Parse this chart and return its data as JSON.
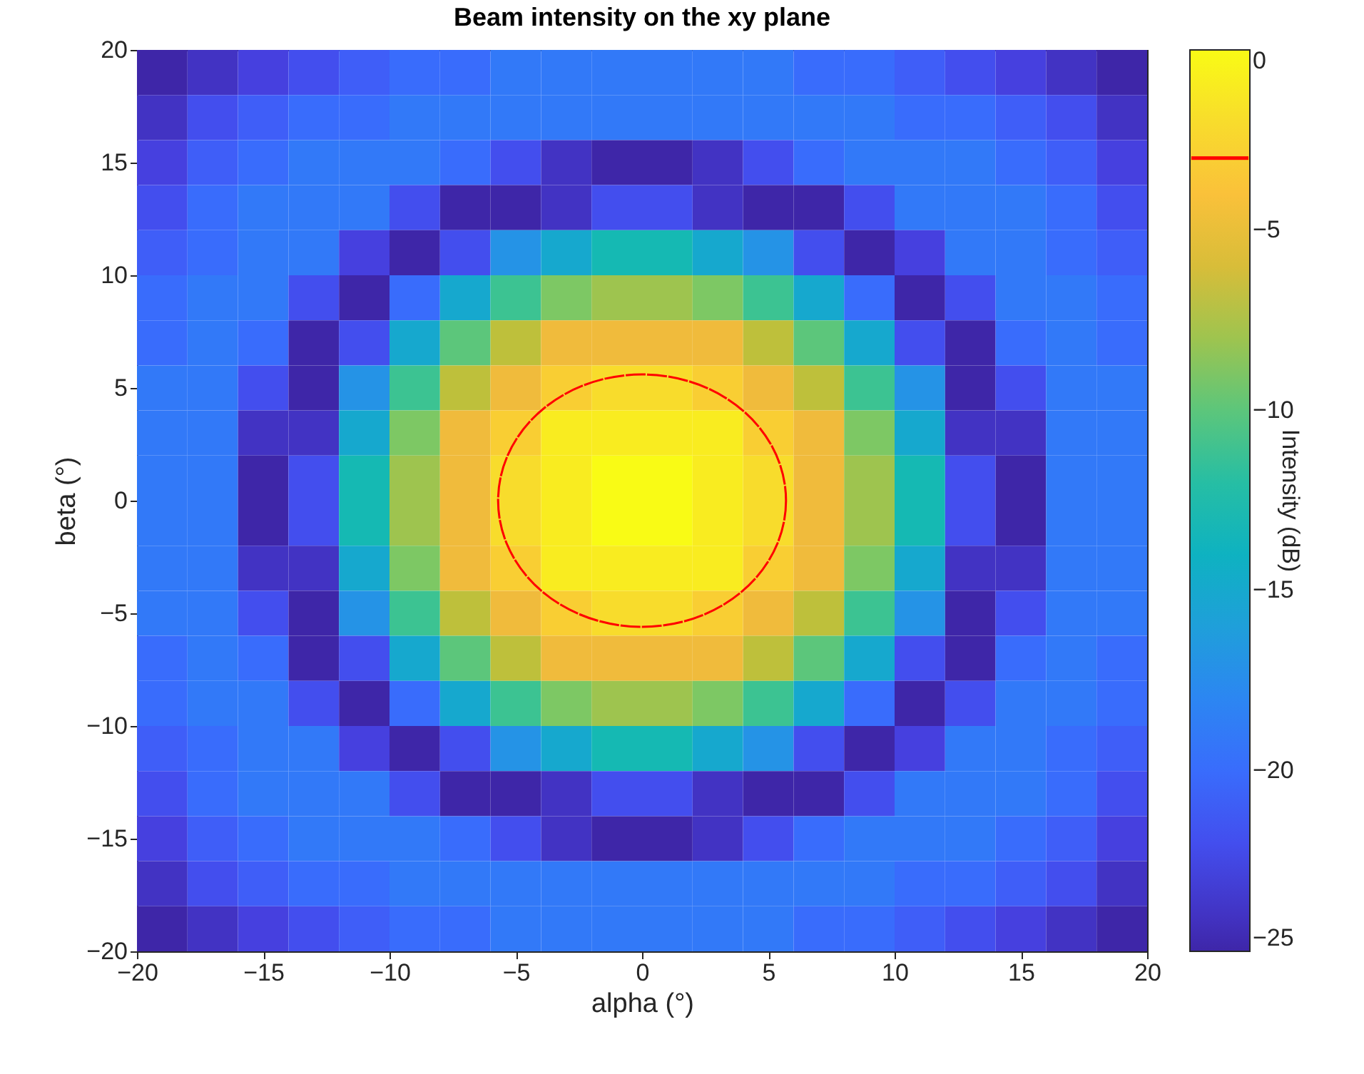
{
  "chart_data": {
    "type": "heatmap",
    "title": "Beam intensity on the xy plane",
    "xlabel": "alpha (°)",
    "ylabel": "beta (°)",
    "clabel": "Intensity (dB)",
    "x": [
      -19,
      -17,
      -15,
      -13,
      -11,
      -9,
      -7,
      -5,
      -3,
      -1,
      1,
      3,
      5,
      7,
      9,
      11,
      13,
      15,
      17,
      19
    ],
    "y": [
      19,
      17,
      15,
      13,
      11,
      9,
      7,
      5,
      3,
      1,
      -1,
      -3,
      -5,
      -7,
      -9,
      -11,
      -13,
      -15,
      -17,
      -19
    ],
    "cells": [
      [
        -25,
        -24,
        -23,
        -22,
        -21,
        -20,
        -20,
        -19,
        -19,
        -19,
        -19,
        -19,
        -19,
        -20,
        -20,
        -21,
        -22,
        -23,
        -24,
        -25
      ],
      [
        -24,
        -22,
        -21,
        -20,
        -20,
        -19,
        -19,
        -19,
        -19,
        -19,
        -19,
        -19,
        -19,
        -19,
        -19,
        -20,
        -20,
        -21,
        -22,
        -24
      ],
      [
        -23,
        -21,
        -20,
        -19,
        -19,
        -19,
        -20,
        -22,
        -24,
        -25,
        -25,
        -24,
        -22,
        -20,
        -19,
        -19,
        -19,
        -20,
        -21,
        -23
      ],
      [
        -22,
        -20,
        -19,
        -19,
        -19,
        -22,
        -25,
        -25,
        -24,
        -22,
        -22,
        -24,
        -25,
        -25,
        -22,
        -19,
        -19,
        -19,
        -20,
        -22
      ],
      [
        -21,
        -20,
        -19,
        -19,
        -23,
        -25,
        -22,
        -17,
        -15,
        -13,
        -13,
        -15,
        -17,
        -22,
        -25,
        -23,
        -19,
        -19,
        -20,
        -21
      ],
      [
        -20,
        -19,
        -19,
        -22,
        -25,
        -20,
        -15,
        -11,
        -9,
        -8,
        -8,
        -9,
        -11,
        -15,
        -20,
        -25,
        -22,
        -19,
        -19,
        -20
      ],
      [
        -20,
        -19,
        -20,
        -25,
        -22,
        -15,
        -10,
        -7,
        -5,
        -5,
        -5,
        -5,
        -7,
        -10,
        -15,
        -22,
        -25,
        -20,
        -19,
        -20
      ],
      [
        -19,
        -19,
        -22,
        -25,
        -17,
        -11,
        -7,
        -5,
        -3,
        -2,
        -2,
        -3,
        -5,
        -7,
        -11,
        -17,
        -25,
        -22,
        -19,
        -19
      ],
      [
        -19,
        -19,
        -24,
        -24,
        -15,
        -9,
        -5,
        -3,
        -1,
        -1,
        -1,
        -1,
        -3,
        -5,
        -9,
        -15,
        -24,
        -24,
        -19,
        -19
      ],
      [
        -19,
        -19,
        -25,
        -22,
        -13,
        -8,
        -5,
        -2,
        -1,
        0,
        0,
        -1,
        -2,
        -5,
        -8,
        -13,
        -22,
        -25,
        -19,
        -19
      ],
      [
        -19,
        -19,
        -25,
        -22,
        -13,
        -8,
        -5,
        -2,
        -1,
        0,
        0,
        -1,
        -2,
        -5,
        -8,
        -13,
        -22,
        -25,
        -19,
        -19
      ],
      [
        -19,
        -19,
        -24,
        -24,
        -15,
        -9,
        -5,
        -3,
        -1,
        -1,
        -1,
        -1,
        -3,
        -5,
        -9,
        -15,
        -24,
        -24,
        -19,
        -19
      ],
      [
        -19,
        -19,
        -22,
        -25,
        -17,
        -11,
        -7,
        -5,
        -3,
        -2,
        -2,
        -3,
        -5,
        -7,
        -11,
        -17,
        -25,
        -22,
        -19,
        -19
      ],
      [
        -20,
        -19,
        -20,
        -25,
        -22,
        -15,
        -10,
        -7,
        -5,
        -5,
        -5,
        -5,
        -7,
        -10,
        -15,
        -22,
        -25,
        -20,
        -19,
        -20
      ],
      [
        -20,
        -19,
        -19,
        -22,
        -25,
        -20,
        -15,
        -11,
        -9,
        -8,
        -8,
        -9,
        -11,
        -15,
        -20,
        -25,
        -22,
        -19,
        -19,
        -20
      ],
      [
        -21,
        -20,
        -19,
        -19,
        -23,
        -25,
        -22,
        -17,
        -15,
        -13,
        -13,
        -15,
        -17,
        -22,
        -25,
        -23,
        -19,
        -19,
        -20,
        -21
      ],
      [
        -22,
        -20,
        -19,
        -19,
        -19,
        -22,
        -25,
        -25,
        -24,
        -22,
        -22,
        -24,
        -25,
        -25,
        -22,
        -19,
        -19,
        -19,
        -20,
        -22
      ],
      [
        -23,
        -21,
        -20,
        -19,
        -19,
        -19,
        -20,
        -22,
        -24,
        -25,
        -25,
        -24,
        -22,
        -20,
        -19,
        -19,
        -19,
        -20,
        -21,
        -23
      ],
      [
        -24,
        -22,
        -21,
        -20,
        -20,
        -19,
        -19,
        -19,
        -19,
        -19,
        -19,
        -19,
        -19,
        -19,
        -19,
        -20,
        -20,
        -21,
        -22,
        -24
      ],
      [
        -25,
        -24,
        -23,
        -22,
        -21,
        -20,
        -20,
        -19,
        -19,
        -19,
        -19,
        -19,
        -19,
        -20,
        -20,
        -21,
        -22,
        -23,
        -24,
        -25
      ]
    ],
    "xlim": [
      -20,
      20
    ],
    "xticks": [
      -20,
      -15,
      -10,
      -5,
      0,
      5,
      10,
      15,
      20
    ],
    "ylim": [
      -20,
      20
    ],
    "yticks": [
      -20,
      -15,
      -10,
      -5,
      0,
      5,
      10,
      15,
      20
    ],
    "clim": [
      -25,
      0
    ],
    "cticks": [
      -25,
      -20,
      -15,
      -10,
      -5,
      0
    ]
  }
}
